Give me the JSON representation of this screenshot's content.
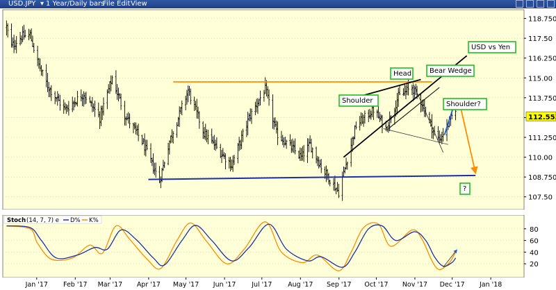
{
  "window": {
    "symbol": "USD.JPY",
    "period": "1 Year/Daily bars",
    "menu": [
      "File",
      "Edit",
      "View"
    ]
  },
  "stoch_legend": {
    "title": "Stoch",
    "params": "(14, 7, 7) e",
    "d_label": "D%",
    "k_label": "K%"
  },
  "chart_data": {
    "type": "candlestick",
    "price_axis_ticks": [
      107.5,
      108.75,
      110.0,
      111.25,
      112.5,
      113.75,
      115.0,
      116.25,
      117.5,
      118.75
    ],
    "price_axis_tick_labels": [
      "107.50",
      "108.750",
      "110.00",
      "111.250",
      "112.50",
      "113.750",
      "115.00",
      "116.250",
      "117.50",
      "118.750"
    ],
    "ylim": [
      106.7,
      119.3
    ],
    "current_price": 112.553,
    "current_price_label": "112.553",
    "x_axis_labels": [
      "Jan '17",
      "Feb '17",
      "Mar '17",
      "Apr '17",
      "May '17",
      "Jun '17",
      "Jul '17",
      "Aug '17",
      "Sep '17",
      "Oct '17",
      "Nov '17",
      "Dec '17",
      "Jan '18"
    ],
    "series_closes": [
      {
        "date": "2016-12-15",
        "value": 118.2
      },
      {
        "date": "2016-12-19",
        "value": 117.0
      },
      {
        "date": "2016-12-27",
        "value": 117.6
      },
      {
        "date": "2017-01-03",
        "value": 117.7
      },
      {
        "date": "2017-01-09",
        "value": 116.0
      },
      {
        "date": "2017-01-17",
        "value": 114.5
      },
      {
        "date": "2017-01-31",
        "value": 113.0
      },
      {
        "date": "2017-02-15",
        "value": 114.0
      },
      {
        "date": "2017-02-28",
        "value": 112.5
      },
      {
        "date": "2017-03-10",
        "value": 115.0
      },
      {
        "date": "2017-03-20",
        "value": 112.7
      },
      {
        "date": "2017-04-03",
        "value": 111.0
      },
      {
        "date": "2017-04-17",
        "value": 108.5
      },
      {
        "date": "2017-04-25",
        "value": 111.0
      },
      {
        "date": "2017-05-10",
        "value": 114.2
      },
      {
        "date": "2017-05-23",
        "value": 111.5
      },
      {
        "date": "2017-06-14",
        "value": 109.5
      },
      {
        "date": "2017-06-28",
        "value": 112.5
      },
      {
        "date": "2017-07-11",
        "value": 114.3
      },
      {
        "date": "2017-07-20",
        "value": 111.5
      },
      {
        "date": "2017-08-09",
        "value": 110.0
      },
      {
        "date": "2017-08-16",
        "value": 110.8
      },
      {
        "date": "2017-08-25",
        "value": 109.4
      },
      {
        "date": "2017-09-08",
        "value": 107.8
      },
      {
        "date": "2017-09-22",
        "value": 112.0
      },
      {
        "date": "2017-10-06",
        "value": 113.0
      },
      {
        "date": "2017-10-16",
        "value": 111.8
      },
      {
        "date": "2017-10-26",
        "value": 113.8
      },
      {
        "date": "2017-11-06",
        "value": 114.4
      },
      {
        "date": "2017-11-14",
        "value": 113.4
      },
      {
        "date": "2017-11-24",
        "value": 111.5
      },
      {
        "date": "2017-11-28",
        "value": 111.1
      },
      {
        "date": "2017-12-06",
        "value": 112.2
      },
      {
        "date": "2017-12-11",
        "value": 113.1
      }
    ],
    "stoch_ticks": [
      20,
      40,
      60,
      80
    ],
    "stoch_ylim": [
      0,
      100
    ],
    "stoch_k": [
      {
        "date": "2016-12-15",
        "value": 85
      },
      {
        "date": "2017-01-03",
        "value": 80
      },
      {
        "date": "2017-01-09",
        "value": 55
      },
      {
        "date": "2017-01-20",
        "value": 28
      },
      {
        "date": "2017-02-06",
        "value": 30
      },
      {
        "date": "2017-02-20",
        "value": 52
      },
      {
        "date": "2017-03-02",
        "value": 38
      },
      {
        "date": "2017-03-13",
        "value": 85
      },
      {
        "date": "2017-03-24",
        "value": 62
      },
      {
        "date": "2017-04-07",
        "value": 28
      },
      {
        "date": "2017-04-18",
        "value": 12
      },
      {
        "date": "2017-05-01",
        "value": 60
      },
      {
        "date": "2017-05-12",
        "value": 90
      },
      {
        "date": "2017-05-25",
        "value": 58
      },
      {
        "date": "2017-06-10",
        "value": 20
      },
      {
        "date": "2017-06-24",
        "value": 45
      },
      {
        "date": "2017-07-11",
        "value": 92
      },
      {
        "date": "2017-07-24",
        "value": 40
      },
      {
        "date": "2017-08-10",
        "value": 22
      },
      {
        "date": "2017-08-22",
        "value": 35
      },
      {
        "date": "2017-09-08",
        "value": 8
      },
      {
        "date": "2017-09-18",
        "value": 40
      },
      {
        "date": "2017-09-28",
        "value": 82
      },
      {
        "date": "2017-10-10",
        "value": 88
      },
      {
        "date": "2017-10-20",
        "value": 50
      },
      {
        "date": "2017-11-06",
        "value": 78
      },
      {
        "date": "2017-11-14",
        "value": 62
      },
      {
        "date": "2017-11-22",
        "value": 25
      },
      {
        "date": "2017-11-28",
        "value": 10
      },
      {
        "date": "2017-12-06",
        "value": 22
      },
      {
        "date": "2017-12-11",
        "value": 40
      }
    ],
    "stoch_d": [
      {
        "date": "2016-12-15",
        "value": 85
      },
      {
        "date": "2017-01-03",
        "value": 82
      },
      {
        "date": "2017-01-12",
        "value": 60
      },
      {
        "date": "2017-01-24",
        "value": 30
      },
      {
        "date": "2017-02-10",
        "value": 35
      },
      {
        "date": "2017-02-24",
        "value": 48
      },
      {
        "date": "2017-03-06",
        "value": 45
      },
      {
        "date": "2017-03-17",
        "value": 78
      },
      {
        "date": "2017-03-29",
        "value": 62
      },
      {
        "date": "2017-04-12",
        "value": 30
      },
      {
        "date": "2017-04-21",
        "value": 18
      },
      {
        "date": "2017-05-05",
        "value": 60
      },
      {
        "date": "2017-05-16",
        "value": 86
      },
      {
        "date": "2017-05-29",
        "value": 60
      },
      {
        "date": "2017-06-14",
        "value": 25
      },
      {
        "date": "2017-06-28",
        "value": 48
      },
      {
        "date": "2017-07-14",
        "value": 88
      },
      {
        "date": "2017-07-28",
        "value": 45
      },
      {
        "date": "2017-08-14",
        "value": 25
      },
      {
        "date": "2017-08-25",
        "value": 32
      },
      {
        "date": "2017-09-11",
        "value": 14
      },
      {
        "date": "2017-09-21",
        "value": 40
      },
      {
        "date": "2017-10-02",
        "value": 80
      },
      {
        "date": "2017-10-13",
        "value": 85
      },
      {
        "date": "2017-10-24",
        "value": 60
      },
      {
        "date": "2017-11-08",
        "value": 75
      },
      {
        "date": "2017-11-17",
        "value": 60
      },
      {
        "date": "2017-11-24",
        "value": 32
      },
      {
        "date": "2017-12-01",
        "value": 16
      },
      {
        "date": "2017-12-08",
        "value": 22
      },
      {
        "date": "2017-12-11",
        "value": 30
      }
    ],
    "annotations": {
      "usd_vs_yen": "USD vs Yen",
      "head": "Head",
      "bear_wedge": "Bear Wedge",
      "shoulder_left": "Shoulder",
      "shoulder_right": "Shoulder?",
      "target": "?"
    },
    "trendlines": {
      "resistance_value": 114.75,
      "support_start_value": 108.6,
      "support_end_value": 108.85
    },
    "colors": {
      "background": "#ffffd8",
      "bars": "#000000",
      "resistance": "#ff8c00",
      "support": "#1a2fa8",
      "wedge": "#000000",
      "arrow_up": "#1e5bd8",
      "arrow_down": "#ff8c00",
      "label_border": "#20c020",
      "price_tag_bg": "#ffff00",
      "stoch_k": "#ff8c00",
      "stoch_d": "#1a2fa8"
    }
  }
}
